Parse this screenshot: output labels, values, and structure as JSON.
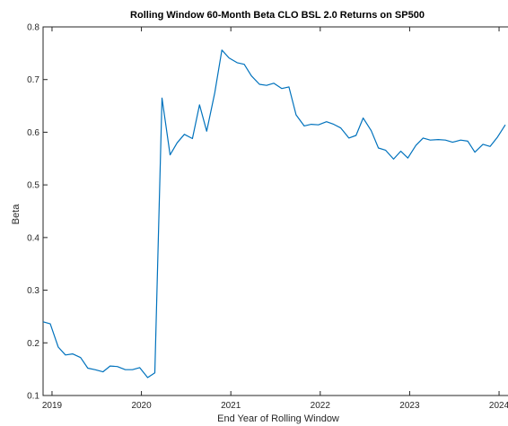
{
  "chart_data": {
    "type": "line",
    "title": "Rolling Window 60-Month Beta CLO BSL 2.0 Returns on SP500",
    "xlabel": "End Year of Rolling Window",
    "ylabel": "Beta",
    "xlim": [
      2018.9,
      2024.1
    ],
    "ylim": [
      0.1,
      0.8
    ],
    "xticks": [
      2019,
      2020,
      2021,
      2022,
      2023,
      2024
    ],
    "xtick_labels": [
      "2019",
      "2020",
      "2021",
      "2022",
      "2023",
      "2024"
    ],
    "yticks": [
      0.1,
      0.2,
      0.3,
      0.4,
      0.5,
      0.6,
      0.7,
      0.8
    ],
    "ytick_labels": [
      "0.1",
      "0.2",
      "0.3",
      "0.4",
      "0.5",
      "0.6",
      "0.7",
      "0.8"
    ],
    "grid": false,
    "series": [
      {
        "color": "#0072BD",
        "x": [
          2018.9,
          2018.98,
          2019.07,
          2019.15,
          2019.23,
          2019.32,
          2019.4,
          2019.48,
          2019.57,
          2019.65,
          2019.73,
          2019.82,
          2019.9,
          2019.98,
          2020.07,
          2020.15,
          2020.23,
          2020.32,
          2020.4,
          2020.48,
          2020.57,
          2020.65,
          2020.73,
          2020.82,
          2020.9,
          2020.98,
          2021.07,
          2021.15,
          2021.23,
          2021.32,
          2021.4,
          2021.48,
          2021.57,
          2021.65,
          2021.73,
          2021.82,
          2021.9,
          2021.98,
          2022.07,
          2022.15,
          2022.23,
          2022.32,
          2022.4,
          2022.48,
          2022.57,
          2022.65,
          2022.73,
          2022.82,
          2022.9,
          2022.98,
          2023.07,
          2023.15,
          2023.23,
          2023.32,
          2023.4,
          2023.48,
          2023.57,
          2023.65,
          2023.73,
          2023.82,
          2023.9,
          2023.98,
          2024.07
        ],
        "y": [
          0.24,
          0.236,
          0.192,
          0.177,
          0.179,
          0.172,
          0.152,
          0.149,
          0.145,
          0.156,
          0.155,
          0.149,
          0.149,
          0.153,
          0.134,
          0.143,
          0.665,
          0.557,
          0.58,
          0.596,
          0.588,
          0.652,
          0.602,
          0.675,
          0.756,
          0.741,
          0.732,
          0.729,
          0.707,
          0.691,
          0.689,
          0.693,
          0.683,
          0.686,
          0.633,
          0.612,
          0.615,
          0.614,
          0.62,
          0.615,
          0.608,
          0.589,
          0.594,
          0.627,
          0.603,
          0.57,
          0.566,
          0.549,
          0.564,
          0.551,
          0.575,
          0.589,
          0.585,
          0.586,
          0.585,
          0.581,
          0.585,
          0.583,
          0.562,
          0.577,
          0.573,
          0.59,
          0.614
        ]
      }
    ]
  }
}
